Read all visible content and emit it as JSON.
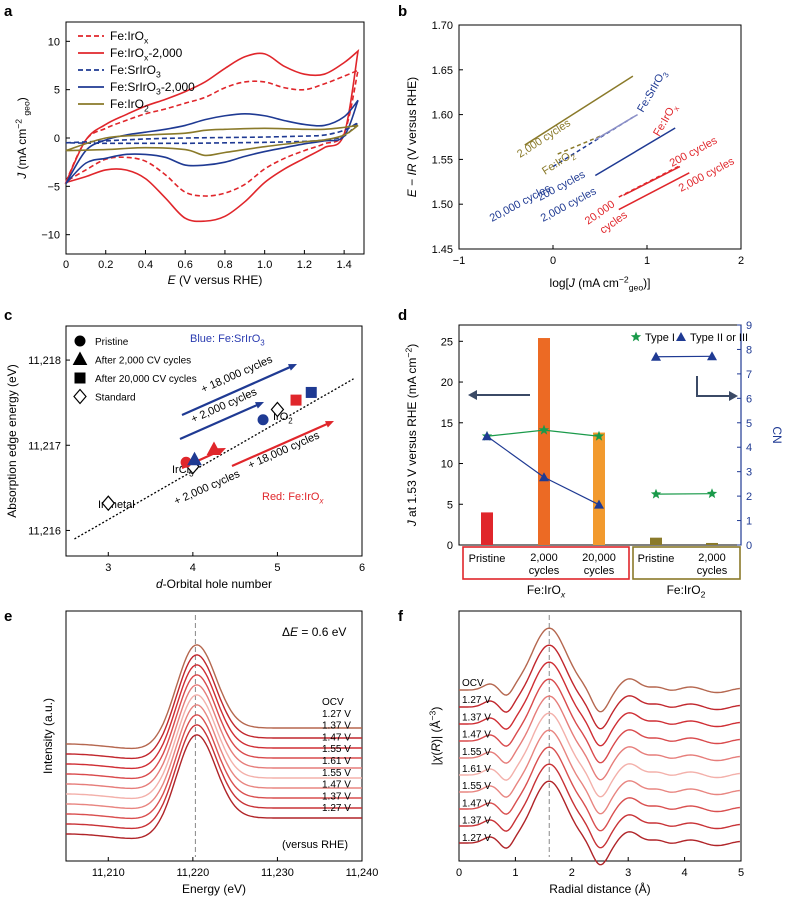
{
  "colors": {
    "red": "#e0262b",
    "navy": "#1f3a93",
    "olive": "#8a7a2a",
    "blueText": "#2a3bb0",
    "arrowGray": "#3b4a66",
    "green": "#1a9a4a",
    "orange": "#ec6a24",
    "orange2": "#f29a2e"
  },
  "chart_data": [
    {
      "panel": "a",
      "type": "line",
      "title": "",
      "xlabel_main": "E (V versus RHE)",
      "ylabel": {
        "J": "J",
        "unit_pre": "(mA cm",
        "sup": "−2",
        "sub": "geo",
        "unit_post": ")"
      },
      "xlim": [
        0,
        1.5
      ],
      "ylim": [
        -12,
        12
      ],
      "xticks": [
        "0",
        "0.2",
        "0.4",
        "0.6",
        "0.8",
        "1.0",
        "1.2",
        "1.4"
      ],
      "yticks": [
        "10",
        "5",
        "0",
        "−5",
        "−10"
      ],
      "legend": [
        {
          "main": "Fe:IrO",
          "sub": "x",
          "post": ""
        },
        {
          "main": "Fe:IrO",
          "sub": "x",
          "post": "-2,000"
        },
        {
          "main": "Fe:SrIrO",
          "sub": "3",
          "post": ""
        },
        {
          "main": "Fe:SrIrO",
          "sub": "3",
          "post": "-2,000"
        },
        {
          "main": "Fe:IrO",
          "sub": "2",
          "post": ""
        }
      ],
      "series": [
        {
          "name": "Fe:IrOx",
          "style": "dashed",
          "x": [
            0.0,
            0.1,
            0.2,
            0.3,
            0.4,
            0.5,
            0.6,
            0.7,
            0.8,
            0.9,
            1.0,
            1.1,
            1.2,
            1.3,
            1.4,
            1.47
          ],
          "anodic": [
            -4.5,
            -0.2,
            1.0,
            1.8,
            2.5,
            3.0,
            3.6,
            4.2,
            5.2,
            5.8,
            5.8,
            5.2,
            5.0,
            5.6,
            6.4,
            7.0
          ],
          "cathodic": [
            -4.5,
            -3.3,
            -2.2,
            -2.0,
            -2.4,
            -3.8,
            -5.6,
            -6.0,
            -5.7,
            -4.8,
            -3.2,
            -2.1,
            -1.3,
            -0.6,
            0.5,
            7.0
          ]
        },
        {
          "name": "Fe:IrOx-2,000",
          "style": "solid",
          "x": [
            0.0,
            0.1,
            0.2,
            0.3,
            0.4,
            0.5,
            0.6,
            0.7,
            0.8,
            0.9,
            1.0,
            1.1,
            1.2,
            1.3,
            1.4,
            1.47
          ],
          "anodic": [
            -4.6,
            -0.2,
            1.4,
            2.4,
            3.3,
            4.0,
            4.8,
            5.8,
            7.2,
            8.4,
            8.7,
            7.4,
            6.6,
            6.6,
            7.8,
            9.0
          ],
          "cathodic": [
            -4.6,
            -4.0,
            -3.3,
            -3.3,
            -4.2,
            -6.2,
            -8.3,
            -8.6,
            -8.1,
            -6.6,
            -4.6,
            -3.2,
            -2.1,
            -1.0,
            0.4,
            9.0
          ]
        },
        {
          "name": "Fe:SrIrO3",
          "style": "dashed",
          "x": [
            0.0,
            0.2,
            0.4,
            0.6,
            0.8,
            1.0,
            1.2,
            1.3,
            1.4,
            1.47
          ],
          "anodic": [
            -0.5,
            -0.3,
            -0.1,
            0.0,
            0.05,
            0.1,
            0.2,
            0.3,
            0.8,
            1.6
          ],
          "cathodic": [
            -0.5,
            -0.55,
            -0.55,
            -0.55,
            -0.5,
            -0.45,
            -0.35,
            -0.2,
            0.2,
            1.6
          ]
        },
        {
          "name": "Fe:SrIrO3-2,000",
          "style": "solid",
          "x": [
            0.0,
            0.1,
            0.2,
            0.3,
            0.4,
            0.5,
            0.6,
            0.7,
            0.8,
            0.9,
            1.0,
            1.1,
            1.2,
            1.3,
            1.4,
            1.47
          ],
          "anodic": [
            -4.7,
            -1.3,
            -0.2,
            0.3,
            0.6,
            0.9,
            1.3,
            1.9,
            2.3,
            2.5,
            2.3,
            1.8,
            1.4,
            1.3,
            2.2,
            3.9
          ],
          "cathodic": [
            -4.7,
            -2.6,
            -2.1,
            -1.7,
            -1.7,
            -2.0,
            -2.8,
            -2.8,
            -2.5,
            -1.9,
            -1.4,
            -1.0,
            -0.6,
            -0.3,
            0.2,
            3.9
          ]
        },
        {
          "name": "Fe:IrO2",
          "style": "solid",
          "x": [
            0.0,
            0.2,
            0.4,
            0.6,
            0.7,
            0.8,
            1.0,
            1.2,
            1.3,
            1.4,
            1.47
          ],
          "anodic": [
            -1.3,
            0.0,
            0.3,
            0.5,
            0.8,
            0.9,
            1.0,
            0.9,
            0.9,
            1.1,
            1.3
          ],
          "cathodic": [
            -1.3,
            -1.2,
            -1.0,
            -1.2,
            -1.8,
            -1.5,
            -0.9,
            -0.4,
            -0.2,
            0.3,
            1.3
          ]
        }
      ]
    },
    {
      "panel": "b",
      "type": "line",
      "xlabel": {
        "pre": "log[J (mA cm",
        "sup": "−2",
        "sub": "geo",
        "post": ")]"
      },
      "ylabel": "E − IR (V versus RHE)",
      "xlim": [
        -1,
        2
      ],
      "ylim": [
        1.45,
        1.7
      ],
      "xticks": [
        "−1",
        "0",
        "1",
        "2"
      ],
      "yticks": [
        "1.70",
        "1.65",
        "1.60",
        "1.55",
        "1.50",
        "1.45"
      ],
      "series": [
        {
          "name": "Fe:IrO2",
          "style": "dashed",
          "x": [
            0.05,
            0.55
          ],
          "y": [
            1.556,
            1.578
          ]
        },
        {
          "name": "Fe:IrO2 2,000 cycles",
          "style": "solid",
          "x": [
            -0.3,
            0.85
          ],
          "y": [
            1.566,
            1.643
          ]
        },
        {
          "name": "Fe:SrIrO3",
          "style": "dashed",
          "x": [
            0.0,
            0.85
          ],
          "y": [
            1.542,
            1.597
          ]
        },
        {
          "name": "Fe:SrIrO3 200 cycles",
          "style": "solid",
          "x": [
            0.45,
            0.9
          ],
          "y": [
            1.572,
            1.6
          ]
        },
        {
          "name": "Fe:SrIrO3 20,000 cycles",
          "style": "solid",
          "x": [
            0.45,
            1.3
          ],
          "y": [
            1.532,
            1.585
          ]
        },
        {
          "name": "Fe:IrOx",
          "style": "dashed",
          "x": [
            0.7,
            1.35
          ],
          "y": [
            1.508,
            1.543
          ]
        },
        {
          "name": "Fe:IrOx 200 cycles",
          "style": "solid",
          "x": [
            0.75,
            1.35
          ],
          "y": [
            1.51,
            1.542
          ]
        },
        {
          "name": "Fe:IrOx 2,000 cycles",
          "style": "solid",
          "x": [
            0.7,
            1.45
          ],
          "y": [
            1.494,
            1.535
          ]
        }
      ],
      "labels": [
        "2,000 cycles",
        "Fe:IrO2",
        "Fe:SrIrO3",
        "20,000 cycles",
        "200 cycles",
        "2,000 cycles",
        "Fe:IrOx",
        "200 cycles",
        "2,000 cycles",
        "20,000 cycles"
      ],
      "label_text": {
        "olive_cycles": "2,000 cycles",
        "olive_name_main": "Fe:IrO",
        "olive_name_sub": "2",
        "blue_name_main": "Fe:SrIrO",
        "blue_name_sub": "3",
        "blue_c1": "20,000 cycles",
        "blue_c2": "200 cycles",
        "blue_c3": "2,000 cycles",
        "red_name_main": "Fe:IrO",
        "red_name_sub": "x",
        "red_c1": "200 cycles",
        "red_c2": "2,000 cycles",
        "red_c3a": "20,000",
        "red_c3b": "cycles"
      }
    },
    {
      "panel": "c",
      "type": "scatter",
      "xlabel": "d-Orbital hole number",
      "xlabel_d": "d",
      "xlabel_rest": "-Orbital hole number",
      "ylabel": "Absorption edge energy (eV)",
      "xlim": [
        2.5,
        6
      ],
      "ylim": [
        11215.7,
        11218.4
      ],
      "xticks": [
        "3",
        "4",
        "5",
        "6"
      ],
      "yticks": [
        "11,218",
        "11,217",
        "11,216"
      ],
      "fit": {
        "x": [
          2.6,
          5.9
        ],
        "y": [
          11215.9,
          11217.78
        ]
      },
      "legend": [
        "Pristine",
        "After 2,000 CV cycles",
        "After 20,000 CV cycles",
        "Standard"
      ],
      "blue_title": {
        "main": "Blue: Fe:SrIrO",
        "sub": "3"
      },
      "red_title": {
        "main": "Red: Fe:IrO",
        "sub": "x"
      },
      "points": [
        {
          "label": "Ir metal",
          "x": 3.0,
          "y": 11216.32,
          "marker": "diamond",
          "series": "standard"
        },
        {
          "label": "IrCl3",
          "x": 4.0,
          "y": 11216.75,
          "marker": "diamond",
          "series": "standard"
        },
        {
          "label": "IrO2",
          "x": 5.0,
          "y": 11217.42,
          "marker": "diamond",
          "series": "standard"
        },
        {
          "label": "",
          "x": 3.92,
          "y": 11216.8,
          "marker": "circle",
          "series": "red"
        },
        {
          "label": "",
          "x": 4.25,
          "y": 11216.95,
          "marker": "triangle",
          "series": "red"
        },
        {
          "label": "",
          "x": 5.22,
          "y": 11217.53,
          "marker": "square",
          "series": "red"
        },
        {
          "label": "",
          "x": 4.83,
          "y": 11217.3,
          "marker": "circle",
          "series": "navy"
        },
        {
          "label": "",
          "x": 4.02,
          "y": 11216.83,
          "marker": "triangle",
          "series": "navy"
        },
        {
          "label": "",
          "x": 5.4,
          "y": 11217.62,
          "marker": "square",
          "series": "navy"
        }
      ],
      "annotations": {
        "blue_18000": "+ 18,000 cycles",
        "blue_2000": "+ 2,000 cycles",
        "red_18000": "+ 18,000 cycles",
        "red_2000": "+ 2,000 cycles",
        "ir_metal": "Ir metal",
        "ircl_main": "IrCl",
        "ircl_sub": "3",
        "iro2_main": "IrO",
        "iro2_sub": "2"
      }
    },
    {
      "panel": "d",
      "type": "bar",
      "ylabel": {
        "main": "J at 1.53 V versus RHE (mA cm",
        "sup": "−2",
        "post": ")"
      },
      "y2label": "CN",
      "ylim": [
        0,
        27
      ],
      "y2lim": [
        0,
        9
      ],
      "yticks": [
        "0",
        "5",
        "10",
        "15",
        "20",
        "25"
      ],
      "y2ticks": [
        "0",
        "1",
        "2",
        "3",
        "4",
        "5",
        "6",
        "7",
        "8",
        "9"
      ],
      "categories": [
        "Pristine",
        "2,000 cycles",
        "20,000 cycles",
        "Pristine",
        "2,000 cycles"
      ],
      "cat_lines": [
        [
          "Pristine",
          ""
        ],
        [
          "2,000",
          "cycles"
        ],
        [
          "20,000",
          "cycles"
        ],
        [
          "Pristine",
          ""
        ],
        [
          "2,000",
          "cycles"
        ]
      ],
      "groups": [
        {
          "name_main": "Fe:IrO",
          "name_sub": "x"
        },
        {
          "name_main": "Fe:IrO",
          "name_sub": "2"
        }
      ],
      "values": [
        4.0,
        25.4,
        13.8,
        0.9,
        0.25
      ],
      "bar_colors": [
        "#e0262b",
        "#ec6a24",
        "#f29a2e",
        "#8a7a2a",
        "#8a7a2a"
      ],
      "legend": [
        "Type I",
        "Type II or III"
      ],
      "cn_type1": [
        4.45,
        4.7,
        4.45,
        2.08,
        2.1
      ],
      "cn_type23": [
        4.45,
        2.77,
        1.65,
        7.7,
        7.72
      ]
    },
    {
      "panel": "e",
      "type": "line",
      "xlabel": "Energy (eV)",
      "ylabel": "Intensity (a.u.)",
      "xlim": [
        11205,
        11240
      ],
      "xticks": [
        "11,210",
        "11,220",
        "11,230",
        "11,240"
      ],
      "annotation_main": "ΔE = 0.6 eV",
      "footnote": "(versus RHE)",
      "dashed_x": 11220.3,
      "series_labels": [
        "OCV",
        "1.27 V",
        "1.37 V",
        "1.47 V",
        "1.55 V",
        "1.61 V",
        "1.55 V",
        "1.47 V",
        "1.37 V",
        "1.27 V"
      ]
    },
    {
      "panel": "f",
      "type": "line",
      "xlabel": "Radial distance (Å)",
      "ylabel": "|χ(R)| (Å⁻³)",
      "xlim": [
        0,
        5
      ],
      "xticks": [
        "0",
        "1",
        "2",
        "3",
        "4",
        "5"
      ],
      "dashed_x": 1.6,
      "series_labels": [
        "OCV",
        "1.27 V",
        "1.37 V",
        "1.47 V",
        "1.55 V",
        "1.61 V",
        "1.55 V",
        "1.47 V",
        "1.37 V",
        "1.27 V"
      ]
    }
  ],
  "panel_labels": [
    "a",
    "b",
    "c",
    "d",
    "e",
    "f"
  ]
}
